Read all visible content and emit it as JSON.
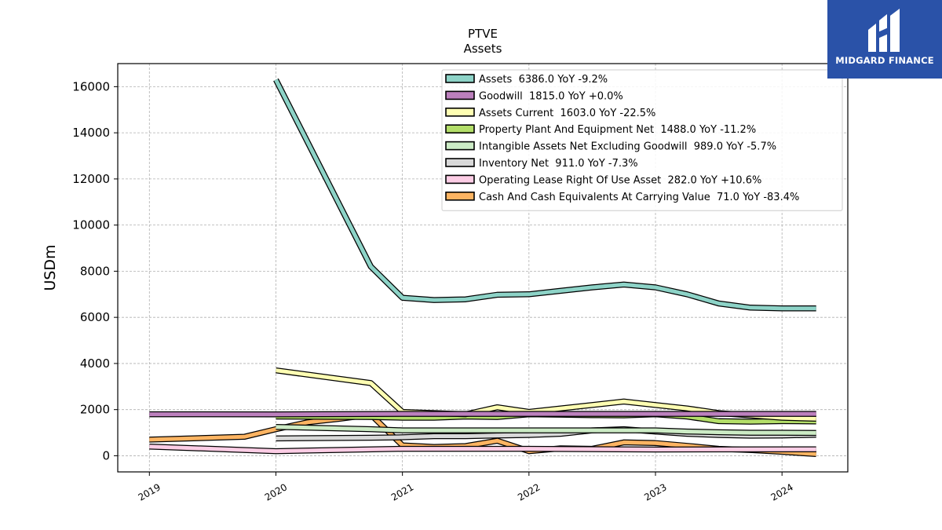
{
  "title": "PTVE",
  "subtitle": "Assets",
  "logo": {
    "text": "MIDGARD FINANCE",
    "color": "#2a52a8"
  },
  "chart_data": {
    "type": "line",
    "ylabel": "USDm",
    "xlabel": "",
    "xlim": [
      2018.75,
      2024.52
    ],
    "ylim": [
      -700,
      17000
    ],
    "yticks": [
      0,
      2000,
      4000,
      6000,
      8000,
      10000,
      12000,
      14000,
      16000
    ],
    "xticks": [
      2019,
      2020,
      2021,
      2022,
      2023,
      2024
    ],
    "grid": true,
    "legend_position": "top-right",
    "series": [
      {
        "name": "Assets  6386.0 YoY -9.2%",
        "color": "#8dd3c7",
        "x": [
          2020.0,
          2020.75,
          2021.0,
          2021.25,
          2021.5,
          2021.75,
          2022.0,
          2022.25,
          2022.5,
          2022.75,
          2023.0,
          2023.25,
          2023.5,
          2023.75,
          2024.0,
          2024.27
        ],
        "y": [
          16300,
          8200,
          6850,
          6750,
          6780,
          6980,
          7000,
          7150,
          7300,
          7420,
          7300,
          7000,
          6600,
          6420,
          6390,
          6386
        ]
      },
      {
        "name": "Goodwill  1815.0 YoY +0.0%",
        "color": "#bc80bd",
        "x": [
          2019.0,
          2020.0,
          2021.0,
          2022.0,
          2023.0,
          2024.27
        ],
        "y": [
          1800,
          1790,
          1815,
          1815,
          1815,
          1815
        ]
      },
      {
        "name": "Assets Current  1603.0 YoY -22.5%",
        "color": "#ffffb3",
        "x": [
          2020.0,
          2020.75,
          2021.0,
          2021.25,
          2021.5,
          2021.75,
          2022.0,
          2022.25,
          2022.5,
          2022.75,
          2023.0,
          2023.25,
          2023.5,
          2023.75,
          2024.0,
          2024.27
        ],
        "y": [
          3700,
          3150,
          1900,
          1850,
          1800,
          2100,
          1900,
          2050,
          2200,
          2350,
          2200,
          2050,
          1850,
          1750,
          1650,
          1603
        ]
      },
      {
        "name": "Property Plant And Equipment Net  1488.0 YoY -11.2%",
        "color": "#b3de69",
        "x": [
          2020.0,
          2020.75,
          2021.0,
          2021.25,
          2021.5,
          2021.75,
          2022.0,
          2022.25,
          2022.5,
          2022.75,
          2023.0,
          2023.25,
          2023.5,
          2023.75,
          2024.0,
          2024.27
        ],
        "y": [
          1700,
          1680,
          1650,
          1650,
          1700,
          1680,
          1800,
          1780,
          1760,
          1750,
          1800,
          1700,
          1500,
          1480,
          1500,
          1488
        ]
      },
      {
        "name": "Intangible Assets Net Excluding Goodwill  989.0 YoY -5.7%",
        "color": "#ccebc5",
        "x": [
          2020.0,
          2020.75,
          2021.0,
          2021.25,
          2021.5,
          2021.75,
          2022.0,
          2022.25,
          2022.5,
          2022.75,
          2023.0,
          2023.25,
          2023.5,
          2023.75,
          2024.0,
          2024.27
        ],
        "y": [
          1250,
          1150,
          1100,
          1100,
          1100,
          1100,
          1100,
          1100,
          1100,
          1100,
          1100,
          1050,
          1020,
          1000,
          1000,
          989
        ]
      },
      {
        "name": "Inventory Net  911.0 YoY -7.3%",
        "color": "#d9d9d9",
        "x": [
          2020.0,
          2020.75,
          2021.0,
          2021.25,
          2021.5,
          2021.75,
          2022.0,
          2022.25,
          2022.5,
          2022.75,
          2023.0,
          2023.25,
          2023.5,
          2023.75,
          2024.0,
          2024.27
        ],
        "y": [
          750,
          780,
          800,
          850,
          850,
          880,
          900,
          950,
          1100,
          1150,
          1050,
          950,
          900,
          870,
          880,
          911
        ]
      },
      {
        "name": "Operating Lease Right Of Use Asset  282.0 YoY +10.6%",
        "color": "#fccde5",
        "x": [
          2019.0,
          2020.0,
          2021.0,
          2022.0,
          2023.0,
          2024.27
        ],
        "y": [
          400,
          200,
          300,
          300,
          270,
          282
        ]
      },
      {
        "name": "Cash And Cash Equivalents At Carrying Value  71.0 YoY -83.4%",
        "color": "#fdb462",
        "x": [
          2019.0,
          2019.75,
          2020.0,
          2020.25,
          2020.5,
          2020.75,
          2021.0,
          2021.25,
          2021.5,
          2021.75,
          2022.0,
          2022.25,
          2022.5,
          2022.75,
          2023.0,
          2023.25,
          2023.5,
          2023.75,
          2024.0,
          2024.27
        ],
        "y": [
          700,
          820,
          1150,
          1450,
          1600,
          1780,
          450,
          380,
          420,
          650,
          200,
          320,
          300,
          580,
          550,
          430,
          300,
          250,
          170,
          71
        ]
      }
    ]
  }
}
